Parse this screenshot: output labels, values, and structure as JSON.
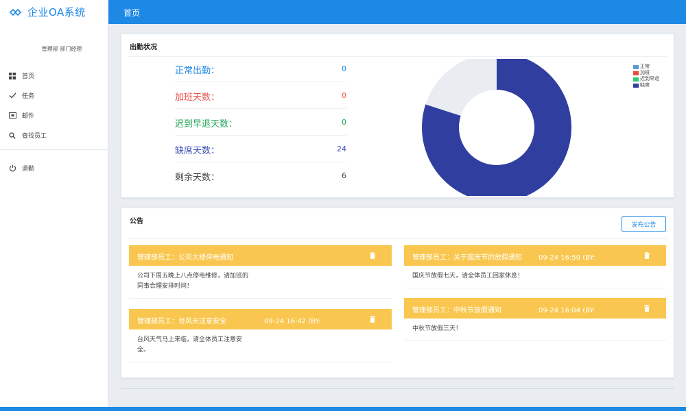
{
  "app": {
    "title": "企业OA系统"
  },
  "header": {
    "page_title": "首页"
  },
  "sidebar": {
    "user_role": "管理部 部门经理",
    "items": [
      {
        "label": "首页",
        "icon": "dashboard-icon"
      },
      {
        "label": "任务",
        "icon": "check-icon"
      },
      {
        "label": "邮件",
        "icon": "mail-icon"
      },
      {
        "label": "查找员工",
        "icon": "search-icon"
      }
    ],
    "logout": {
      "label": "退勤",
      "icon": "power-icon"
    }
  },
  "attendance": {
    "title": "出勤状况",
    "stats": [
      {
        "label": "正常出勤：",
        "value": "0",
        "color": "#1e88e5"
      },
      {
        "label": "加班天数：",
        "value": "0",
        "color": "#ef5350"
      },
      {
        "label": "迟到早退天数：",
        "value": "0",
        "color": "#26a65b"
      },
      {
        "label": "缺席天数：",
        "value": "24",
        "color": "#3f51b5"
      },
      {
        "label": "剩余天数：",
        "value": "6",
        "color": "#444444"
      }
    ]
  },
  "chart_data": {
    "type": "pie",
    "donut": true,
    "categories": [
      "正常",
      "加班",
      "迟到早退",
      "缺席"
    ],
    "values": [
      0,
      0,
      0,
      24
    ],
    "remainder_value": 6,
    "colors": [
      "#5b9bd5",
      "#e74c3c",
      "#2ecc71",
      "#303f9f"
    ],
    "remainder_color": "#e9edf2",
    "legend_position": "top-right"
  },
  "notices": {
    "title": "公告",
    "publish_label": "发布公告",
    "items": [
      {
        "title": "管理部员工：公司大楼停电通知",
        "date": "",
        "body_lines": [
          "公司下周五晚上八点停电维修，请加班的",
          "同事合理安排时间！"
        ]
      },
      {
        "title": "管理部员工：台风天注意安全",
        "date": "09-24 16:42 (BY:",
        "body_lines": [
          "台风天气马上来临，请全体员工注意安",
          "全。"
        ]
      },
      {
        "title": "管理部员工：关于国庆节的放假通知",
        "date": "09-24 16:50 (BY:",
        "body_lines": [
          "国庆节放假七天，请全体员工回家休息！"
        ]
      },
      {
        "title": "管理部员工：中秋节放假通知",
        "date": "09-24 16:04 (BY:",
        "body_lines": [
          "中秋节放假三天！"
        ]
      }
    ]
  }
}
